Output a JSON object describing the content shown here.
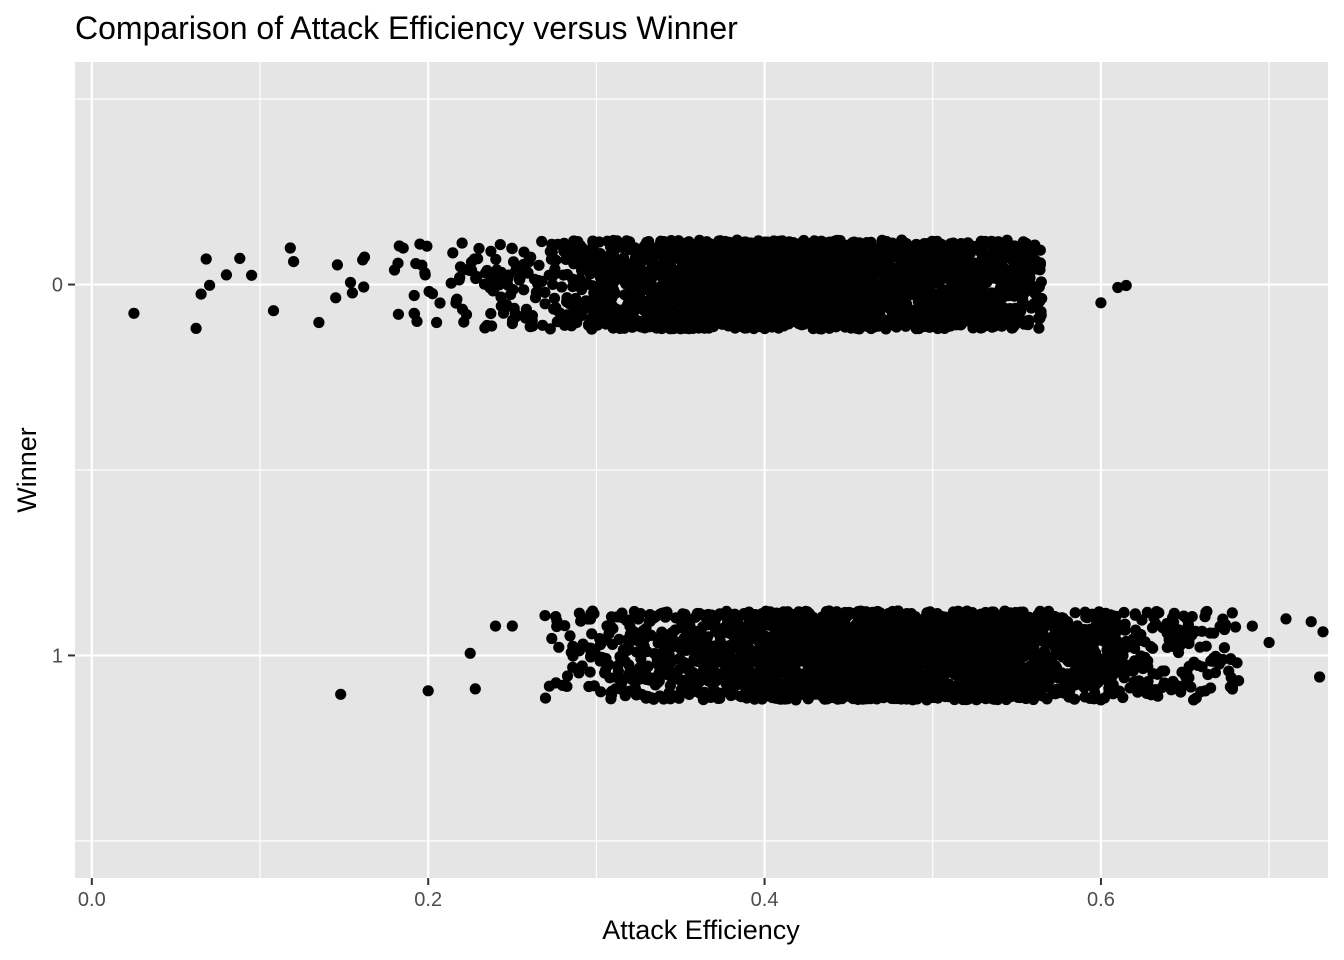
{
  "chart_data": {
    "type": "scatter",
    "title": "Comparison of Attack Efficiency versus Winner",
    "xlabel": "Attack Efficiency",
    "ylabel": "Winner",
    "xlim": [
      -0.01,
      0.735
    ],
    "x_ticks": [
      "0.0",
      "0.2",
      "0.4",
      "0.6"
    ],
    "x_tick_values": [
      0.0,
      0.2,
      0.4,
      0.6
    ],
    "categories": [
      "0",
      "1"
    ],
    "jitter_height": 0.12,
    "grid": true,
    "colors": {
      "panel": "#e5e5e5",
      "grid": "#ffffff",
      "point": "#000000",
      "tick": "#333333"
    },
    "series": [
      {
        "category": "0",
        "count": 2600,
        "x_range": [
          0.025,
          0.615
        ],
        "x_mean": 0.42,
        "x_sd": 0.085,
        "outliers_x": [
          0.025,
          0.062,
          0.065,
          0.068,
          0.07,
          0.08,
          0.088,
          0.095,
          0.108,
          0.118,
          0.12,
          0.135,
          0.145,
          0.6,
          0.61,
          0.615
        ]
      },
      {
        "category": "1",
        "count": 2600,
        "x_range": [
          0.148,
          0.732
        ],
        "x_mean": 0.48,
        "x_sd": 0.085,
        "outliers_x": [
          0.148,
          0.2,
          0.225,
          0.228,
          0.24,
          0.25,
          0.68,
          0.69,
          0.7,
          0.71,
          0.725,
          0.73,
          0.732
        ]
      }
    ]
  }
}
